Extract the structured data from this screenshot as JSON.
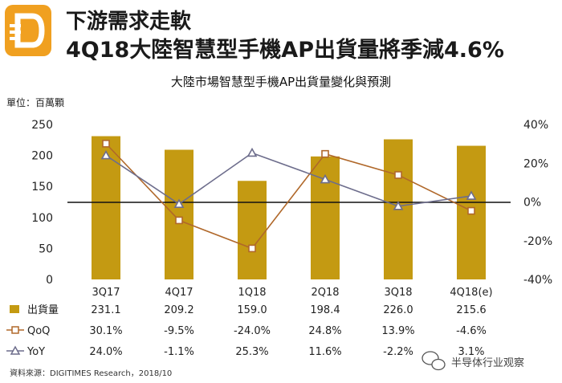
{
  "header": {
    "title_line1": "下游需求走軟",
    "title_line2": "4Q18大陸智慧型手機AP出貨量將季減4.6%",
    "logo_color": "#f0a020"
  },
  "chart_data": {
    "type": "bar",
    "title": "大陸市場智慧型手機AP出貨量變化與預測",
    "unit_label": "單位：百萬顆",
    "categories": [
      "3Q17",
      "4Q17",
      "1Q18",
      "2Q18",
      "3Q18",
      "4Q18(e)"
    ],
    "series": [
      {
        "name": "出貨量",
        "kind": "bar",
        "axis": "left",
        "color": "#c49a12",
        "values": [
          231.1,
          209.2,
          159.0,
          198.4,
          226.0,
          215.6
        ],
        "display": [
          "231.1",
          "209.2",
          "159.0",
          "198.4",
          "226.0",
          "215.6"
        ]
      },
      {
        "name": "QoQ",
        "kind": "line",
        "axis": "right",
        "marker": "square",
        "color": "#b0682a",
        "values": [
          30.1,
          -9.5,
          -24.0,
          24.8,
          13.9,
          -4.6
        ],
        "display": [
          "30.1%",
          "-9.5%",
          "-24.0%",
          "24.8%",
          "13.9%",
          "-4.6%"
        ]
      },
      {
        "name": "YoY",
        "kind": "line",
        "axis": "right",
        "marker": "triangle",
        "color": "#6d6d8c",
        "values": [
          24.0,
          -1.1,
          25.3,
          11.6,
          -2.2,
          3.1
        ],
        "display": [
          "24.0%",
          "-1.1%",
          "25.3%",
          "11.6%",
          "-2.2%",
          "3.1%"
        ]
      }
    ],
    "left_axis": {
      "min": 0,
      "max": 250,
      "ticks": [
        "0",
        "50",
        "100",
        "150",
        "200",
        "250"
      ]
    },
    "right_axis": {
      "min": -40,
      "max": 40,
      "ticks": [
        "-40%",
        "-20%",
        "0%",
        "20%",
        "40%"
      ]
    },
    "source": "資料來源：DIGITIMES Research，2018/10"
  },
  "watermark": "半导体行业观察"
}
